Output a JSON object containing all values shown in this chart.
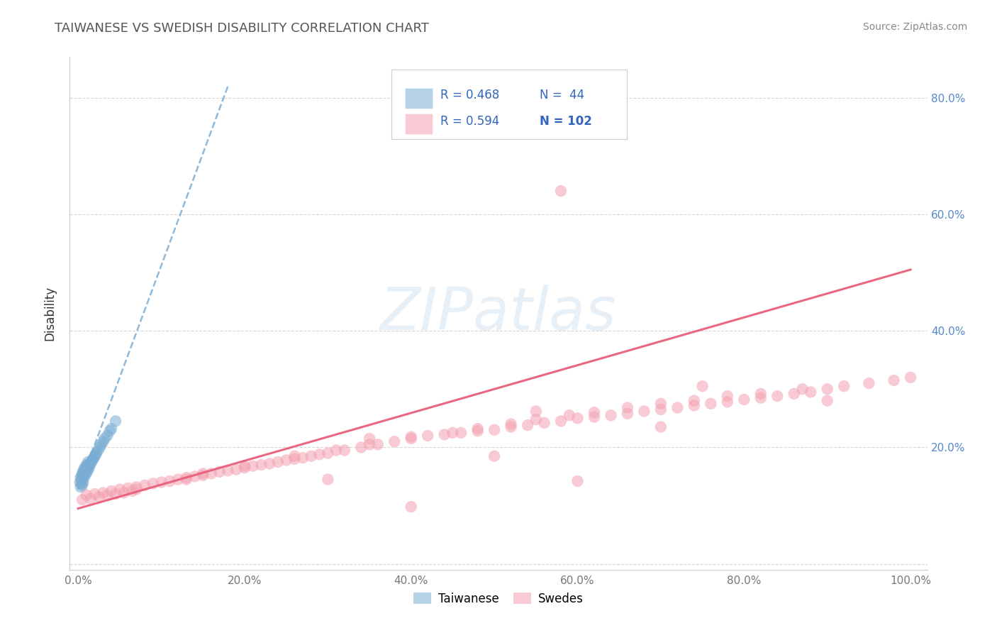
{
  "title": "TAIWANESE VS SWEDISH DISABILITY CORRELATION CHART",
  "source_text": "Source: ZipAtlas.com",
  "ylabel": "Disability",
  "watermark": "ZIPatlas",
  "xlim": [
    -0.01,
    1.02
  ],
  "ylim": [
    -0.01,
    0.87
  ],
  "xticks": [
    0.0,
    0.2,
    0.4,
    0.6,
    0.8,
    1.0
  ],
  "yticks": [
    0.0,
    0.2,
    0.4,
    0.6,
    0.8
  ],
  "xtick_labels": [
    "0.0%",
    "20.0%",
    "40.0%",
    "60.0%",
    "80.0%",
    "100.0%"
  ],
  "ytick_labels_left": [
    "",
    "",
    "",
    "",
    ""
  ],
  "ytick_labels_right": [
    "",
    "20.0%",
    "40.0%",
    "60.0%",
    "80.0%"
  ],
  "legend_r_taiwanese": "R = 0.468",
  "legend_n_taiwanese": "N =  44",
  "legend_r_swedes": "R = 0.594",
  "legend_n_swedes": "N = 102",
  "color_taiwanese": "#7AADD4",
  "color_swedes": "#F4A0B0",
  "color_trend_taiwanese": "#7AADD4",
  "color_trend_swedes": "#E8607A",
  "background_color": "#FFFFFF",
  "grid_color": "#CCCCCC",
  "title_color": "#555555",
  "axis_label_color": "#333333",
  "tick_color_right": "#5588CC",
  "tick_color_x": "#777777",
  "taiwanese_x": [
    0.002,
    0.003,
    0.003,
    0.004,
    0.004,
    0.004,
    0.005,
    0.005,
    0.005,
    0.006,
    0.006,
    0.006,
    0.007,
    0.007,
    0.007,
    0.008,
    0.008,
    0.009,
    0.009,
    0.01,
    0.01,
    0.011,
    0.011,
    0.012,
    0.012,
    0.013,
    0.014,
    0.015,
    0.016,
    0.017,
    0.018,
    0.019,
    0.02,
    0.021,
    0.022,
    0.024,
    0.026,
    0.028,
    0.03,
    0.032,
    0.035,
    0.038,
    0.04,
    0.045
  ],
  "taiwanese_y": [
    0.14,
    0.132,
    0.148,
    0.138,
    0.15,
    0.142,
    0.135,
    0.155,
    0.145,
    0.15,
    0.158,
    0.14,
    0.155,
    0.162,
    0.148,
    0.158,
    0.165,
    0.16,
    0.153,
    0.162,
    0.17,
    0.158,
    0.168,
    0.162,
    0.175,
    0.165,
    0.17,
    0.172,
    0.175,
    0.178,
    0.18,
    0.182,
    0.185,
    0.188,
    0.19,
    0.195,
    0.2,
    0.205,
    0.21,
    0.215,
    0.22,
    0.228,
    0.232,
    0.245
  ],
  "tw_trend_x": [
    0.0,
    0.18
  ],
  "tw_trend_y": [
    0.128,
    0.82
  ],
  "sw_trend_x": [
    0.0,
    1.0
  ],
  "sw_trend_y": [
    0.095,
    0.505
  ],
  "swedes_x": [
    0.005,
    0.01,
    0.015,
    0.02,
    0.025,
    0.03,
    0.035,
    0.04,
    0.045,
    0.05,
    0.055,
    0.06,
    0.065,
    0.07,
    0.08,
    0.09,
    0.1,
    0.11,
    0.12,
    0.13,
    0.14,
    0.15,
    0.16,
    0.17,
    0.18,
    0.19,
    0.2,
    0.21,
    0.22,
    0.23,
    0.24,
    0.25,
    0.26,
    0.27,
    0.28,
    0.29,
    0.3,
    0.32,
    0.34,
    0.36,
    0.38,
    0.4,
    0.42,
    0.44,
    0.46,
    0.48,
    0.5,
    0.52,
    0.54,
    0.56,
    0.58,
    0.6,
    0.62,
    0.64,
    0.66,
    0.68,
    0.7,
    0.72,
    0.74,
    0.76,
    0.78,
    0.8,
    0.82,
    0.84,
    0.86,
    0.88,
    0.9,
    0.92,
    0.95,
    0.98,
    1.0,
    0.07,
    0.13,
    0.2,
    0.26,
    0.31,
    0.35,
    0.4,
    0.45,
    0.48,
    0.52,
    0.55,
    0.59,
    0.62,
    0.66,
    0.7,
    0.74,
    0.78,
    0.82,
    0.87,
    0.3,
    0.5,
    0.7,
    0.9,
    0.15,
    0.35,
    0.55,
    0.75,
    0.4,
    0.6,
    0.58,
    0.62
  ],
  "swedes_y": [
    0.11,
    0.118,
    0.112,
    0.12,
    0.115,
    0.122,
    0.118,
    0.125,
    0.12,
    0.128,
    0.122,
    0.13,
    0.125,
    0.132,
    0.135,
    0.138,
    0.14,
    0.142,
    0.145,
    0.148,
    0.15,
    0.152,
    0.155,
    0.158,
    0.16,
    0.162,
    0.165,
    0.168,
    0.17,
    0.172,
    0.175,
    0.178,
    0.18,
    0.182,
    0.185,
    0.188,
    0.19,
    0.195,
    0.2,
    0.205,
    0.21,
    0.215,
    0.22,
    0.222,
    0.225,
    0.228,
    0.23,
    0.235,
    0.238,
    0.242,
    0.245,
    0.25,
    0.252,
    0.255,
    0.258,
    0.262,
    0.265,
    0.268,
    0.272,
    0.275,
    0.278,
    0.282,
    0.285,
    0.288,
    0.292,
    0.295,
    0.3,
    0.305,
    0.31,
    0.315,
    0.32,
    0.128,
    0.145,
    0.168,
    0.185,
    0.195,
    0.205,
    0.218,
    0.225,
    0.232,
    0.24,
    0.248,
    0.255,
    0.26,
    0.268,
    0.275,
    0.28,
    0.288,
    0.292,
    0.3,
    0.145,
    0.185,
    0.235,
    0.28,
    0.155,
    0.215,
    0.262,
    0.305,
    0.098,
    0.142,
    0.64,
    0.78
  ]
}
